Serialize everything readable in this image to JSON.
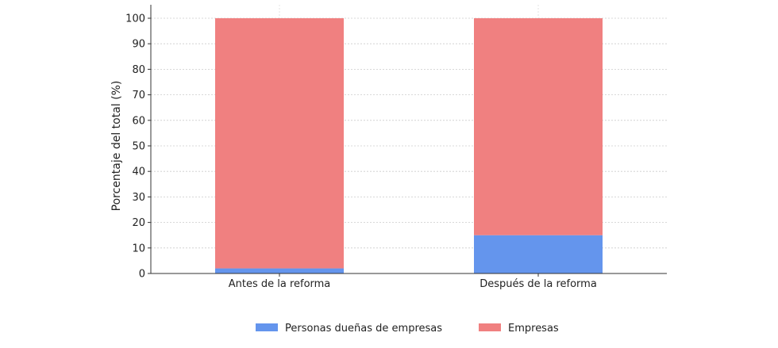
{
  "chart_data": {
    "type": "bar",
    "stacked": true,
    "title": "",
    "xlabel": "",
    "ylabel": "Porcentaje del total (%)",
    "categories": [
      "Antes de la reforma",
      "Después de la reforma"
    ],
    "series": [
      {
        "name": "Personas dueñas de empresas",
        "values": [
          2,
          15
        ],
        "color": "#6495ed"
      },
      {
        "name": "Empresas",
        "values": [
          98,
          85
        ],
        "color": "#f08080"
      }
    ],
    "ylim": [
      0,
      100
    ],
    "yticks": [
      "0",
      "10",
      "20",
      "30",
      "40",
      "50",
      "60",
      "70",
      "80",
      "90",
      "100"
    ],
    "grid": true,
    "legend": "bottom-center"
  }
}
